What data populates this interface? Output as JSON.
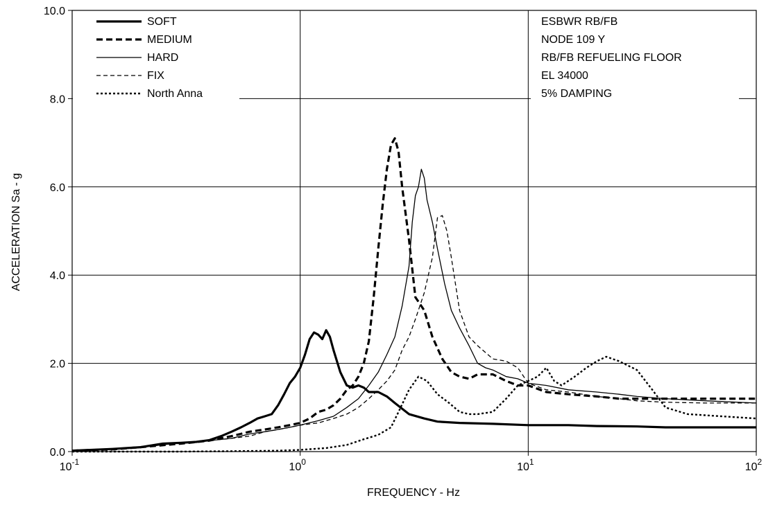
{
  "chart_data": {
    "type": "line",
    "title": "",
    "xlabel": "FREQUENCY - Hz",
    "ylabel": "ACCELERATION Sa - g",
    "xscale": "log",
    "xlim": [
      0.1,
      100
    ],
    "ylim": [
      0,
      10
    ],
    "x_ticks": [
      {
        "value": 0.1,
        "base": "10",
        "exp": "-1"
      },
      {
        "value": 1,
        "base": "10",
        "exp": "0"
      },
      {
        "value": 10,
        "base": "10",
        "exp": "1"
      },
      {
        "value": 100,
        "base": "10",
        "exp": "2"
      }
    ],
    "y_ticks": [
      {
        "value": 0,
        "label": "0.0"
      },
      {
        "value": 2,
        "label": "2.0"
      },
      {
        "value": 4,
        "label": "4.0"
      },
      {
        "value": 6,
        "label": "6.0"
      },
      {
        "value": 8,
        "label": "8.0"
      },
      {
        "value": 10,
        "label": "10.0"
      }
    ],
    "grid": true,
    "legend_position": "top-left",
    "annotation": [
      "ESBWR RB/FB",
      "NODE 109 Y",
      "RB/FB REFUELING FLOOR",
      "EL 34000",
      "5% DAMPING"
    ],
    "series": [
      {
        "name": "SOFT",
        "style": "thick-solid",
        "color": "#000000",
        "points": [
          [
            0.1,
            0.02
          ],
          [
            0.15,
            0.06
          ],
          [
            0.2,
            0.1
          ],
          [
            0.25,
            0.18
          ],
          [
            0.3,
            0.2
          ],
          [
            0.35,
            0.22
          ],
          [
            0.4,
            0.26
          ],
          [
            0.45,
            0.35
          ],
          [
            0.5,
            0.45
          ],
          [
            0.55,
            0.55
          ],
          [
            0.6,
            0.65
          ],
          [
            0.65,
            0.75
          ],
          [
            0.7,
            0.8
          ],
          [
            0.75,
            0.85
          ],
          [
            0.8,
            1.05
          ],
          [
            0.85,
            1.3
          ],
          [
            0.9,
            1.55
          ],
          [
            0.95,
            1.7
          ],
          [
            1.0,
            1.9
          ],
          [
            1.05,
            2.2
          ],
          [
            1.1,
            2.55
          ],
          [
            1.15,
            2.7
          ],
          [
            1.2,
            2.65
          ],
          [
            1.25,
            2.55
          ],
          [
            1.3,
            2.75
          ],
          [
            1.35,
            2.6
          ],
          [
            1.4,
            2.3
          ],
          [
            1.5,
            1.8
          ],
          [
            1.6,
            1.5
          ],
          [
            1.7,
            1.45
          ],
          [
            1.8,
            1.5
          ],
          [
            1.9,
            1.45
          ],
          [
            2.0,
            1.35
          ],
          [
            2.2,
            1.35
          ],
          [
            2.4,
            1.25
          ],
          [
            2.6,
            1.1
          ],
          [
            3.0,
            0.85
          ],
          [
            3.5,
            0.75
          ],
          [
            4.0,
            0.68
          ],
          [
            5.0,
            0.65
          ],
          [
            7.0,
            0.63
          ],
          [
            10,
            0.6
          ],
          [
            15,
            0.6
          ],
          [
            20,
            0.58
          ],
          [
            30,
            0.57
          ],
          [
            40,
            0.55
          ],
          [
            60,
            0.55
          ],
          [
            100,
            0.55
          ]
        ]
      },
      {
        "name": "MEDIUM",
        "style": "thick-dashed",
        "color": "#000000",
        "points": [
          [
            0.1,
            0.02
          ],
          [
            0.15,
            0.05
          ],
          [
            0.2,
            0.1
          ],
          [
            0.3,
            0.18
          ],
          [
            0.4,
            0.25
          ],
          [
            0.5,
            0.35
          ],
          [
            0.6,
            0.45
          ],
          [
            0.7,
            0.5
          ],
          [
            0.8,
            0.55
          ],
          [
            0.9,
            0.6
          ],
          [
            1.0,
            0.65
          ],
          [
            1.1,
            0.75
          ],
          [
            1.2,
            0.9
          ],
          [
            1.3,
            0.95
          ],
          [
            1.4,
            1.05
          ],
          [
            1.5,
            1.2
          ],
          [
            1.6,
            1.4
          ],
          [
            1.7,
            1.5
          ],
          [
            1.8,
            1.7
          ],
          [
            1.9,
            2.0
          ],
          [
            2.0,
            2.5
          ],
          [
            2.1,
            3.5
          ],
          [
            2.2,
            4.6
          ],
          [
            2.3,
            5.6
          ],
          [
            2.4,
            6.4
          ],
          [
            2.5,
            6.95
          ],
          [
            2.6,
            7.1
          ],
          [
            2.7,
            6.8
          ],
          [
            2.8,
            6.0
          ],
          [
            3.0,
            4.8
          ],
          [
            3.2,
            3.5
          ],
          [
            3.5,
            3.2
          ],
          [
            3.8,
            2.6
          ],
          [
            4.2,
            2.1
          ],
          [
            4.6,
            1.8
          ],
          [
            5.0,
            1.7
          ],
          [
            5.5,
            1.65
          ],
          [
            6.0,
            1.75
          ],
          [
            7.0,
            1.75
          ],
          [
            8.0,
            1.6
          ],
          [
            9.0,
            1.5
          ],
          [
            10,
            1.5
          ],
          [
            12,
            1.35
          ],
          [
            15,
            1.3
          ],
          [
            20,
            1.25
          ],
          [
            25,
            1.2
          ],
          [
            30,
            1.2
          ],
          [
            40,
            1.2
          ],
          [
            60,
            1.2
          ],
          [
            100,
            1.2
          ]
        ]
      },
      {
        "name": "HARD",
        "style": "thin-solid",
        "color": "#000000",
        "points": [
          [
            0.1,
            0.02
          ],
          [
            0.2,
            0.1
          ],
          [
            0.3,
            0.2
          ],
          [
            0.4,
            0.25
          ],
          [
            0.5,
            0.3
          ],
          [
            0.6,
            0.4
          ],
          [
            0.7,
            0.45
          ],
          [
            0.8,
            0.5
          ],
          [
            0.9,
            0.55
          ],
          [
            1.0,
            0.6
          ],
          [
            1.2,
            0.7
          ],
          [
            1.4,
            0.8
          ],
          [
            1.6,
            1.0
          ],
          [
            1.8,
            1.2
          ],
          [
            2.0,
            1.5
          ],
          [
            2.2,
            1.8
          ],
          [
            2.4,
            2.2
          ],
          [
            2.6,
            2.6
          ],
          [
            2.8,
            3.3
          ],
          [
            3.0,
            4.2
          ],
          [
            3.1,
            5.2
          ],
          [
            3.2,
            5.8
          ],
          [
            3.3,
            6.0
          ],
          [
            3.4,
            6.4
          ],
          [
            3.5,
            6.2
          ],
          [
            3.6,
            5.7
          ],
          [
            3.8,
            5.2
          ],
          [
            4.0,
            4.6
          ],
          [
            4.3,
            3.8
          ],
          [
            4.6,
            3.2
          ],
          [
            5.0,
            2.8
          ],
          [
            5.5,
            2.4
          ],
          [
            6.0,
            2.0
          ],
          [
            6.5,
            1.9
          ],
          [
            7.0,
            1.85
          ],
          [
            8.0,
            1.7
          ],
          [
            9.0,
            1.65
          ],
          [
            10,
            1.55
          ],
          [
            12,
            1.5
          ],
          [
            15,
            1.4
          ],
          [
            20,
            1.35
          ],
          [
            25,
            1.3
          ],
          [
            30,
            1.25
          ],
          [
            40,
            1.2
          ],
          [
            60,
            1.15
          ],
          [
            100,
            1.1
          ]
        ]
      },
      {
        "name": "FIX",
        "style": "thin-dashed",
        "color": "#000000",
        "points": [
          [
            0.1,
            0.02
          ],
          [
            0.2,
            0.1
          ],
          [
            0.3,
            0.2
          ],
          [
            0.4,
            0.25
          ],
          [
            0.5,
            0.3
          ],
          [
            0.6,
            0.35
          ],
          [
            0.7,
            0.45
          ],
          [
            0.8,
            0.5
          ],
          [
            0.9,
            0.55
          ],
          [
            1.0,
            0.6
          ],
          [
            1.2,
            0.65
          ],
          [
            1.4,
            0.75
          ],
          [
            1.6,
            0.85
          ],
          [
            1.8,
            1.0
          ],
          [
            2.0,
            1.2
          ],
          [
            2.2,
            1.4
          ],
          [
            2.4,
            1.6
          ],
          [
            2.6,
            1.85
          ],
          [
            2.8,
            2.3
          ],
          [
            3.0,
            2.6
          ],
          [
            3.2,
            3.0
          ],
          [
            3.5,
            3.6
          ],
          [
            3.8,
            4.4
          ],
          [
            4.0,
            5.3
          ],
          [
            4.2,
            5.35
          ],
          [
            4.4,
            5.0
          ],
          [
            4.6,
            4.4
          ],
          [
            5.0,
            3.2
          ],
          [
            5.5,
            2.6
          ],
          [
            6.0,
            2.4
          ],
          [
            7.0,
            2.1
          ],
          [
            8.0,
            2.05
          ],
          [
            9.0,
            1.9
          ],
          [
            10,
            1.55
          ],
          [
            12,
            1.4
          ],
          [
            15,
            1.35
          ],
          [
            20,
            1.25
          ],
          [
            25,
            1.2
          ],
          [
            30,
            1.15
          ],
          [
            40,
            1.12
          ],
          [
            60,
            1.1
          ],
          [
            100,
            1.1
          ]
        ]
      },
      {
        "name": "North Anna",
        "style": "dotted",
        "color": "#000000",
        "points": [
          [
            0.1,
            0.0
          ],
          [
            0.3,
            0.0
          ],
          [
            0.5,
            0.01
          ],
          [
            0.8,
            0.02
          ],
          [
            1.0,
            0.04
          ],
          [
            1.3,
            0.08
          ],
          [
            1.6,
            0.15
          ],
          [
            1.9,
            0.28
          ],
          [
            2.2,
            0.38
          ],
          [
            2.5,
            0.55
          ],
          [
            2.7,
            0.9
          ],
          [
            3.0,
            1.4
          ],
          [
            3.3,
            1.7
          ],
          [
            3.6,
            1.6
          ],
          [
            4.0,
            1.3
          ],
          [
            4.5,
            1.1
          ],
          [
            5.0,
            0.9
          ],
          [
            5.5,
            0.85
          ],
          [
            6.0,
            0.85
          ],
          [
            7.0,
            0.9
          ],
          [
            8.0,
            1.2
          ],
          [
            9.0,
            1.5
          ],
          [
            10,
            1.6
          ],
          [
            11,
            1.7
          ],
          [
            12,
            1.9
          ],
          [
            13,
            1.6
          ],
          [
            14,
            1.5
          ],
          [
            16,
            1.7
          ],
          [
            18,
            1.9
          ],
          [
            20,
            2.05
          ],
          [
            22,
            2.15
          ],
          [
            25,
            2.05
          ],
          [
            30,
            1.85
          ],
          [
            35,
            1.4
          ],
          [
            40,
            1.0
          ],
          [
            50,
            0.85
          ],
          [
            70,
            0.8
          ],
          [
            100,
            0.75
          ]
        ]
      }
    ]
  }
}
